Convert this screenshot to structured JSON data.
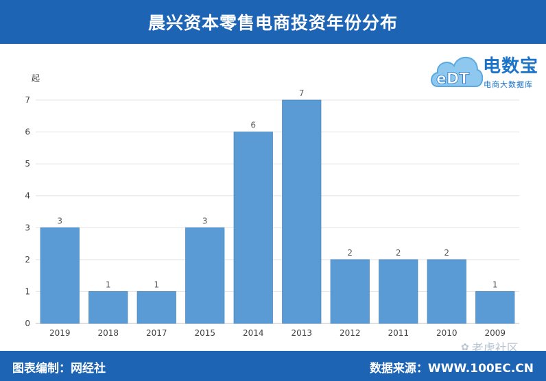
{
  "header": {
    "title": "晨兴资本零售电商投资年份分布"
  },
  "logo": {
    "brand": "电数宝",
    "sub": "电商大数据库",
    "mark_text": "eDT"
  },
  "footer": {
    "editor": "图表编制：网经社",
    "source": "数据来源：WWW.100EC.CN"
  },
  "watermark": {
    "text": "老虎社区"
  },
  "colors": {
    "bar": "#5b9bd5",
    "header": "#1d64b5",
    "label": "#595959"
  },
  "chart_data": {
    "type": "bar",
    "title": "晨兴资本零售电商投资年份分布",
    "ylabel": "起",
    "xlabel": "",
    "categories": [
      "2019",
      "2018",
      "2017",
      "2015",
      "2014",
      "2013",
      "2012",
      "2011",
      "2010",
      "2009"
    ],
    "values": [
      3,
      1,
      1,
      3,
      6,
      7,
      2,
      2,
      2,
      1
    ],
    "ylim": [
      0,
      7
    ],
    "yticks": [
      0,
      1,
      2,
      3,
      4,
      5,
      6,
      7
    ],
    "grid": true,
    "data_labels": true
  }
}
